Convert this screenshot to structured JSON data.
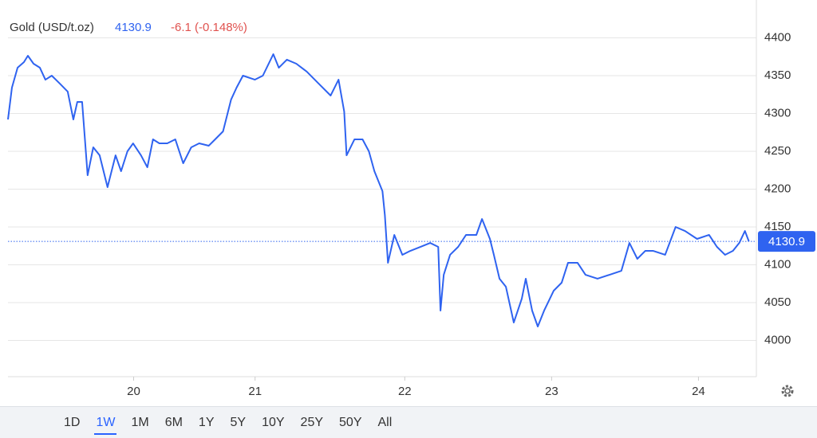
{
  "chart_data": {
    "type": "line",
    "title": "Gold (USD/t.oz)",
    "current_price": 4130.9,
    "current_price_label": "4130.9",
    "change": "-6.1 (-0.148%)",
    "color": "#2f63f0",
    "x": [
      19.11,
      19.138,
      19.178,
      19.223,
      19.251,
      19.291,
      19.336,
      19.375,
      19.42,
      19.477,
      19.533,
      19.573,
      19.601,
      19.635,
      19.674,
      19.714,
      19.759,
      19.815,
      19.872,
      19.911,
      19.956,
      19.996,
      20.052,
      20.097,
      20.137,
      20.182,
      20.238,
      20.295,
      20.351,
      20.408,
      20.464,
      20.532,
      20.577,
      20.633,
      20.69,
      20.729,
      20.774,
      20.859,
      20.915,
      20.989,
      21.028,
      21.085,
      21.152,
      21.226,
      21.31,
      21.395,
      21.451,
      21.491,
      21.508,
      21.564,
      21.621,
      21.666,
      21.705,
      21.762,
      21.779,
      21.801,
      21.846,
      21.903,
      21.959,
      22.032,
      22.1,
      22.157,
      22.173,
      22.196,
      22.241,
      22.298,
      22.354,
      22.427,
      22.467,
      22.523,
      22.551,
      22.591,
      22.636,
      22.692,
      22.749,
      22.777,
      22.822,
      22.862,
      22.907,
      22.975,
      23.031,
      23.076,
      23.144,
      23.2,
      23.285,
      23.37,
      23.454,
      23.511,
      23.567,
      23.623,
      23.68,
      23.764,
      23.838,
      23.905,
      23.99,
      24.075,
      24.131,
      24.188,
      24.244,
      24.289,
      24.329,
      24.357
    ],
    "values": [
      4292.1,
      4334.2,
      4360.5,
      4367.9,
      4376.3,
      4365.8,
      4360.5,
      4344.7,
      4350,
      4339.5,
      4328.9,
      4292.1,
      4315.3,
      4315.3,
      4218.4,
      4255.3,
      4244.7,
      4202.6,
      4244.7,
      4223.7,
      4250,
      4260.5,
      4244.7,
      4228.9,
      4265.8,
      4260.5,
      4260.5,
      4265.8,
      4234.2,
      4255.3,
      4260.5,
      4257.4,
      4265.8,
      4276.3,
      4318.4,
      4334.2,
      4350,
      4344.7,
      4350,
      4378.4,
      4360.5,
      4371.1,
      4365.8,
      4355.3,
      4339.5,
      4323.7,
      4344.7,
      4302.6,
      4244.7,
      4265.8,
      4265.8,
      4250,
      4223.7,
      4197.4,
      4165.8,
      4102.6,
      4139.5,
      4113.2,
      4118.4,
      4123.7,
      4128.9,
      4123.7,
      4039.5,
      4086.8,
      4113.2,
      4123.7,
      4139.5,
      4139.5,
      4160.5,
      4134.2,
      4113.2,
      4081.6,
      4071.1,
      4023.7,
      4055.3,
      4081.6,
      4039.5,
      4018.4,
      4039.5,
      4065.8,
      4076.3,
      4102.6,
      4102.6,
      4086.8,
      4081.6,
      4086.8,
      4092.1,
      4128.9,
      4107.9,
      4118.4,
      4118.4,
      4113.2,
      4150,
      4144.7,
      4134.2,
      4139.5,
      4123.7,
      4113.2,
      4118.4,
      4128.9,
      4144.7,
      4130.9
    ],
    "xlim": [
      19.11,
      24.41
    ],
    "xticks": [
      {
        "value": 20,
        "label": "20"
      },
      {
        "value": 20.86,
        "label": "21"
      },
      {
        "value": 21.92,
        "label": "22"
      },
      {
        "value": 22.96,
        "label": "23"
      },
      {
        "value": 24,
        "label": "24"
      }
    ],
    "ylim": [
      3950,
      4450
    ],
    "yticks": [
      4000,
      4050,
      4100,
      4150,
      4200,
      4250,
      4300,
      4350,
      4400
    ],
    "grid": true,
    "ranges": [
      "1D",
      "1W",
      "1M",
      "6M",
      "1Y",
      "5Y",
      "10Y",
      "25Y",
      "50Y",
      "All"
    ],
    "selected_range_index": 1
  }
}
